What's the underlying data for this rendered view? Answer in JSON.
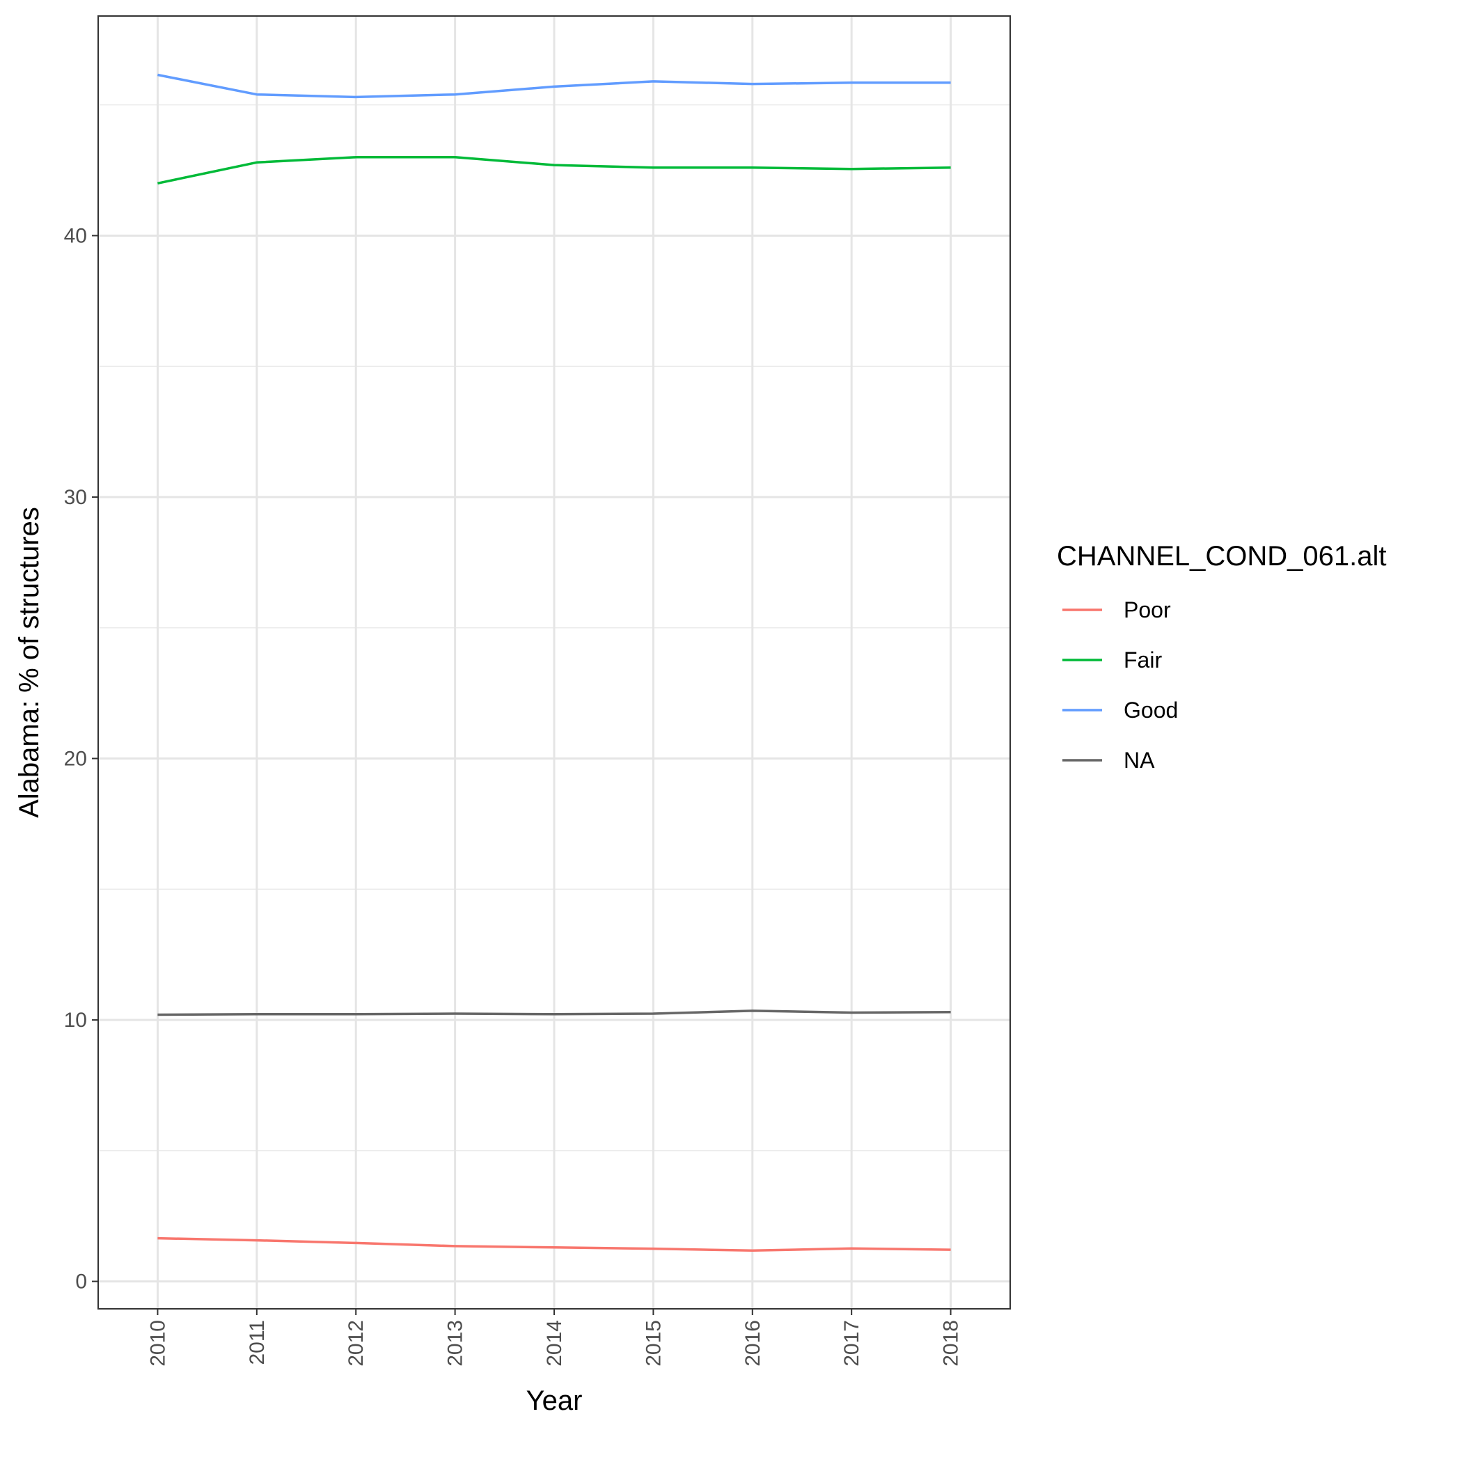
{
  "chart_data": {
    "type": "line",
    "title": "",
    "xlabel": "Year",
    "ylabel": "Alabama: % of structures",
    "x": [
      "2010",
      "2011",
      "2012",
      "2013",
      "2014",
      "2015",
      "2016",
      "2017",
      "2018"
    ],
    "yticks": [
      "0",
      "10",
      "20",
      "30",
      "40"
    ],
    "ylim": [
      -1.05,
      48.4
    ],
    "grid": true,
    "legend": {
      "title": "CHANNEL_COND_061.alt",
      "position": "right"
    },
    "series": [
      {
        "name": "Poor",
        "color": "#F8766D",
        "values": [
          1.65,
          1.57,
          1.47,
          1.35,
          1.3,
          1.25,
          1.18,
          1.26,
          1.21
        ]
      },
      {
        "name": "Fair",
        "color": "#00BA38",
        "values": [
          42.0,
          42.8,
          43.0,
          43.0,
          42.7,
          42.6,
          42.6,
          42.55,
          42.6
        ]
      },
      {
        "name": "Good",
        "color": "#619CFF",
        "values": [
          46.15,
          45.4,
          45.3,
          45.4,
          45.7,
          45.9,
          45.8,
          45.85,
          45.85
        ]
      },
      {
        "name": "NA",
        "color": "#666666",
        "values": [
          10.2,
          10.22,
          10.22,
          10.24,
          10.22,
          10.24,
          10.35,
          10.28,
          10.3
        ]
      }
    ]
  }
}
